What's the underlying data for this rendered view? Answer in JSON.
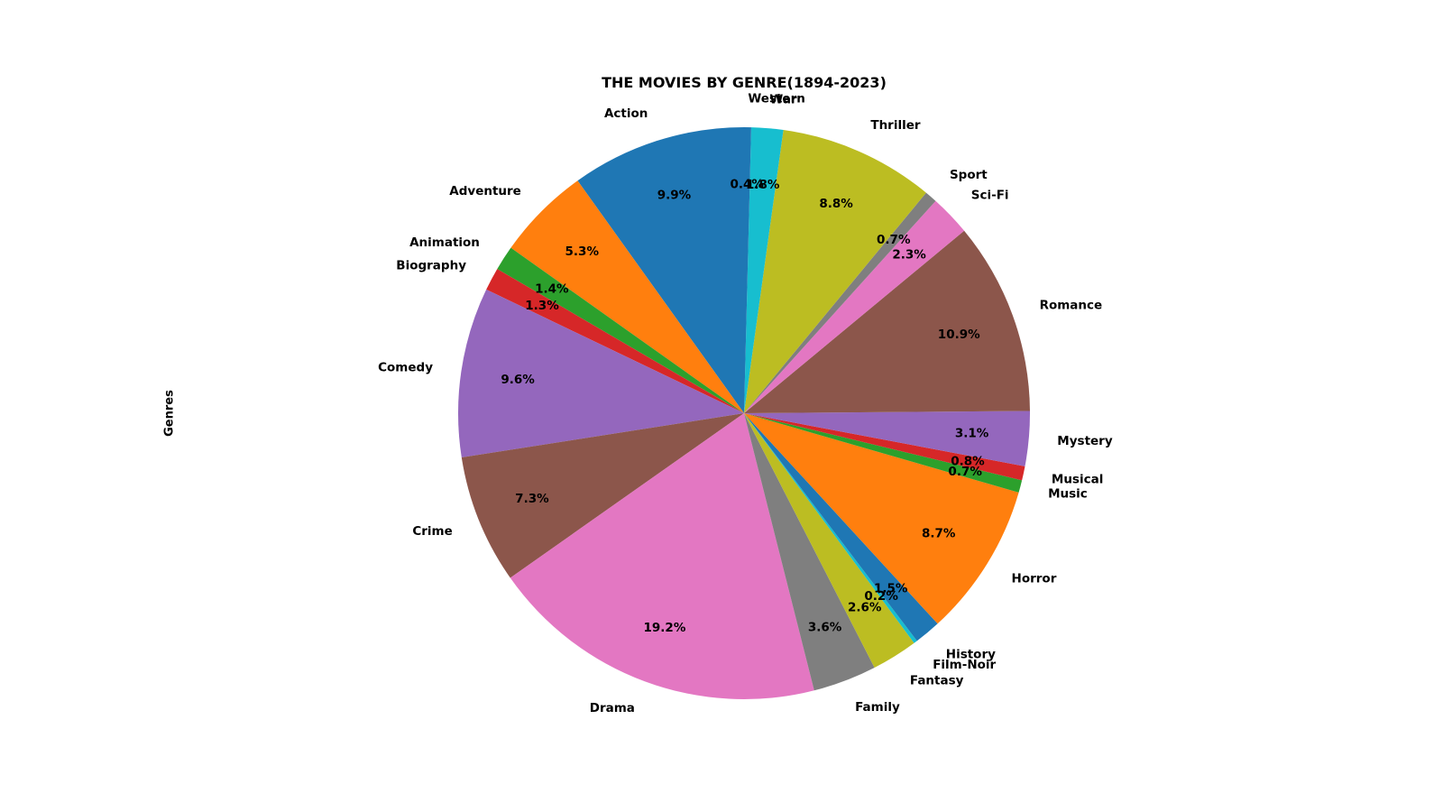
{
  "chart_data": {
    "type": "pie",
    "title": "THE MOVIES BY GENRE(1894-2023)",
    "ylabel": "Genres",
    "start_angle": 90,
    "direction": "counterclockwise",
    "categories": [
      "Action",
      "Adventure",
      "Animation",
      "Biography",
      "Comedy",
      "Crime",
      "Drama",
      "Family",
      "Fantasy",
      "Film-Noir",
      "History",
      "Horror",
      "Music",
      "Musical",
      "Mystery",
      "Romance",
      "Sci-Fi",
      "Sport",
      "Thriller",
      "War",
      "Western"
    ],
    "values": [
      9.9,
      5.3,
      1.4,
      1.3,
      9.6,
      7.3,
      19.2,
      3.6,
      2.6,
      0.2,
      1.5,
      8.7,
      0.7,
      0.8,
      3.1,
      10.9,
      2.3,
      0.7,
      8.8,
      1.8,
      0.4
    ],
    "labels": [
      "9.9%",
      "5.3%",
      "1.4%",
      "1.3%",
      "9.6%",
      "7.3%",
      "19.2%",
      "3.6%",
      "2.6%",
      "0.2%",
      "1.5%",
      "8.7%",
      "0.7%",
      "0.8%",
      "3.1%",
      "10.9%",
      "2.3%",
      "0.7%",
      "8.8%",
      "1.8%",
      "0.4%"
    ],
    "colors": [
      "#1f77b4",
      "#ff7f0e",
      "#2ca02c",
      "#d62728",
      "#9467bd",
      "#8c564b",
      "#e377c2",
      "#7f7f7f",
      "#bcbd22",
      "#17becf",
      "#1f77b4",
      "#ff7f0e",
      "#2ca02c",
      "#d62728",
      "#9467bd",
      "#8c564b",
      "#e377c2",
      "#7f7f7f",
      "#bcbd22",
      "#17becf",
      "#1f77b4"
    ]
  }
}
